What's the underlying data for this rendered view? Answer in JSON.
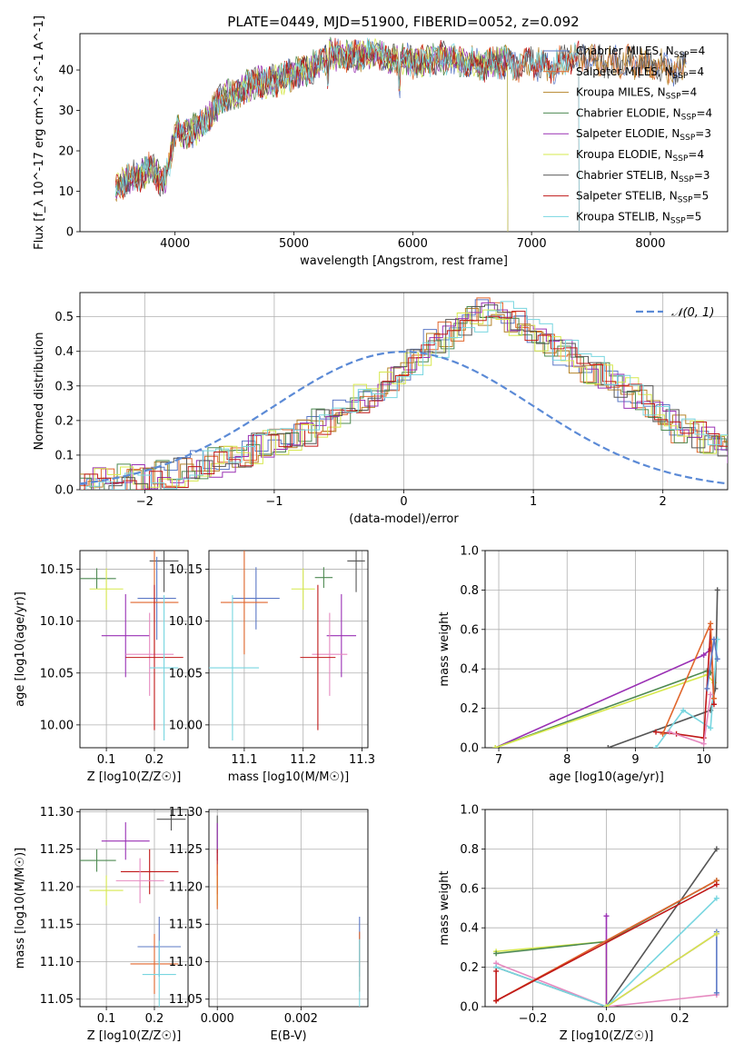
{
  "figure": {
    "title": "PLATE=0449, MJD=51900, FIBERID=0052, z=0.092"
  },
  "colors": {
    "chabrier_miles": "#5b78c6",
    "salpeter_miles": "#e0662c",
    "kroupa_miles": "#b5842a",
    "chabrier_elodie": "#4e8a52",
    "salpeter_elodie": "#9a30b4",
    "kroupa_elodie": "#d6e84c",
    "chabrier_stelib": "#555555",
    "salpeter_stelib": "#c01818",
    "kroupa_stelib": "#78d6e0",
    "pink": "#e68ac0",
    "normal": "#5b8ad6"
  },
  "chart_data": [
    {
      "type": "line",
      "name": "spectrum",
      "xlabel": "wavelength [Angstrom, rest frame]",
      "ylabel": "Flux [f_λ 10^-17 erg cm^-2 s^-1 A^-1]",
      "xlim": [
        3200,
        8650
      ],
      "ylim": [
        0,
        49
      ],
      "xticks": [
        4000,
        5000,
        6000,
        7000,
        8000
      ],
      "yticks": [
        0,
        10,
        20,
        30,
        40
      ],
      "legend_position": "top-right",
      "x": [
        3500,
        3600,
        3700,
        3800,
        3900,
        3950,
        4000,
        4100,
        4200,
        4300,
        4400,
        4500,
        4600,
        4700,
        4800,
        4900,
        5000,
        5100,
        5200,
        5300,
        5400,
        5500,
        5600,
        5700,
        5800,
        5900,
        6000,
        6100,
        6200,
        6300,
        6400,
        6500,
        6600,
        6700,
        6800,
        6900,
        7000,
        7100,
        7200,
        7300,
        7400,
        7500,
        7600,
        7700,
        7800,
        7900,
        8000,
        8100,
        8200,
        8300
      ],
      "y": [
        11,
        13,
        14,
        16,
        12,
        17,
        25,
        24,
        26,
        29,
        33,
        34,
        36,
        37,
        37,
        38,
        39,
        40,
        41,
        44,
        44,
        43,
        44,
        44,
        43,
        43,
        42,
        42,
        43,
        43,
        42,
        42,
        41,
        42,
        42,
        41,
        42,
        41,
        41,
        43,
        43,
        43,
        42,
        42,
        42,
        42,
        41,
        41,
        40,
        41
      ],
      "series": [
        {
          "name": "Chabrier MILES, N_SSP=4",
          "label_main": "Chabrier MILES, N",
          "label_sub": "SSP",
          "label_tail": "=4",
          "color_key": "chabrier_miles",
          "x_end": 8300
        },
        {
          "name": "Salpeter MILES, N_SSP=4",
          "label_main": "Salpeter MILES, N",
          "label_sub": "SSP",
          "label_tail": "=4",
          "color_key": "salpeter_miles",
          "x_end": 8300
        },
        {
          "name": "Kroupa MILES, N_SSP=4",
          "label_main": "Kroupa MILES, N",
          "label_sub": "SSP",
          "label_tail": "=4",
          "color_key": "kroupa_miles",
          "x_end": 8300
        },
        {
          "name": "Chabrier ELODIE, N_SSP=4",
          "label_main": "Chabrier ELODIE, N",
          "label_sub": "SSP",
          "label_tail": "=4",
          "color_key": "chabrier_elodie",
          "x_end": 6800
        },
        {
          "name": "Salpeter ELODIE, N_SSP=3",
          "label_main": "Salpeter ELODIE, N",
          "label_sub": "SSP",
          "label_tail": "=3",
          "color_key": "salpeter_elodie",
          "x_end": 6800
        },
        {
          "name": "Kroupa ELODIE, N_SSP=4",
          "label_main": "Kroupa ELODIE, N",
          "label_sub": "SSP",
          "label_tail": "=4",
          "color_key": "kroupa_elodie",
          "x_end": 6800
        },
        {
          "name": "Chabrier STELIB, N_SSP=3",
          "label_main": "Chabrier STELIB, N",
          "label_sub": "SSP",
          "label_tail": "=3",
          "color_key": "chabrier_stelib",
          "x_end": 8300
        },
        {
          "name": "Salpeter STELIB, N_SSP=5",
          "label_main": "Salpeter STELIB, N",
          "label_sub": "SSP",
          "label_tail": "=5",
          "color_key": "salpeter_stelib",
          "x_end": 7400
        },
        {
          "name": "Kroupa STELIB, N_SSP=5",
          "label_main": "Kroupa STELIB, N",
          "label_sub": "SSP",
          "label_tail": "=5",
          "color_key": "kroupa_stelib",
          "x_end": 7400
        }
      ]
    },
    {
      "type": "bar",
      "name": "residual histogram",
      "xlabel": "(data-model)/error",
      "ylabel": "Normed distribution",
      "xlim": [
        -2.5,
        2.5
      ],
      "ylim": [
        0,
        0.57
      ],
      "xticks": [
        -2,
        -1,
        0,
        1,
        2
      ],
      "yticks": [
        0.0,
        0.1,
        0.2,
        0.3,
        0.4,
        0.5
      ],
      "legend_position": "top-right",
      "bin_width": 0.1,
      "bin_start": -2.5,
      "values": [
        0.02,
        0.02,
        0.025,
        0.03,
        0.03,
        0.035,
        0.04,
        0.05,
        0.06,
        0.07,
        0.08,
        0.09,
        0.1,
        0.12,
        0.13,
        0.14,
        0.15,
        0.17,
        0.19,
        0.21,
        0.23,
        0.26,
        0.28,
        0.3,
        0.33,
        0.36,
        0.38,
        0.42,
        0.45,
        0.47,
        0.49,
        0.52,
        0.5,
        0.48,
        0.46,
        0.44,
        0.41,
        0.39,
        0.37,
        0.35,
        0.33,
        0.3,
        0.28,
        0.26,
        0.23,
        0.21,
        0.18,
        0.16,
        0.14,
        0.12,
        0.1
      ],
      "normal_label": "𝒩(0, 1)",
      "normal_curve": {
        "mu": 0,
        "sigma": 1
      }
    },
    {
      "type": "scatter",
      "name": "age vs Z",
      "xlabel": "Z [log10(Z/Z☉)]",
      "ylabel": "age  [log10(age/yr)]",
      "xlim": [
        0.045,
        0.27
      ],
      "ylim": [
        9.978,
        10.168
      ],
      "xticks": [
        0.1,
        0.2
      ],
      "yticks": [
        10.0,
        10.05,
        10.1,
        10.15
      ],
      "points": [
        {
          "x": 0.08,
          "y": 10.141,
          "xerr": 0.04,
          "yerr": 0.01,
          "color_key": "chabrier_elodie"
        },
        {
          "x": 0.1,
          "y": 10.131,
          "xerr": 0.035,
          "yerr": 0.02,
          "color_key": "kroupa_elodie"
        },
        {
          "x": 0.22,
          "y": 10.158,
          "xerr": 0.03,
          "yerr": 0.03,
          "color_key": "chabrier_stelib"
        },
        {
          "x": 0.205,
          "y": 10.122,
          "xerr": 0.04,
          "yerr": 0.04,
          "color_key": "chabrier_miles"
        },
        {
          "x": 0.2,
          "y": 10.118,
          "xerr": 0.05,
          "yerr": 0.05,
          "color_key": "salpeter_miles"
        },
        {
          "x": 0.14,
          "y": 10.086,
          "xerr": 0.05,
          "yerr": 0.04,
          "color_key": "salpeter_elodie"
        },
        {
          "x": 0.19,
          "y": 10.068,
          "xerr": 0.05,
          "yerr": 0.04,
          "color_key": "pink"
        },
        {
          "x": 0.2,
          "y": 10.065,
          "xerr": 0.06,
          "yerr": 0.07,
          "color_key": "salpeter_stelib"
        },
        {
          "x": 0.22,
          "y": 10.055,
          "xerr": 0.03,
          "yerr": 0.07,
          "color_key": "kroupa_stelib"
        }
      ]
    },
    {
      "type": "scatter",
      "name": "age vs mass",
      "xlabel": "mass [log10(M/M☉)]",
      "ylabel": "",
      "xlim": [
        11.04,
        11.31
      ],
      "ylim": [
        9.978,
        10.168
      ],
      "xticks": [
        11.1,
        11.2,
        11.3
      ],
      "yticks": [
        10.0,
        10.05,
        10.1,
        10.15
      ],
      "points": [
        {
          "x": 11.235,
          "y": 10.142,
          "xerr": 0.015,
          "yerr": 0.01,
          "color_key": "chabrier_elodie"
        },
        {
          "x": 11.2,
          "y": 10.131,
          "xerr": 0.02,
          "yerr": 0.02,
          "color_key": "kroupa_elodie"
        },
        {
          "x": 11.29,
          "y": 10.158,
          "xerr": 0.015,
          "yerr": 0.03,
          "color_key": "chabrier_stelib"
        },
        {
          "x": 11.12,
          "y": 10.122,
          "xerr": 0.04,
          "yerr": 0.03,
          "color_key": "chabrier_miles"
        },
        {
          "x": 11.1,
          "y": 10.118,
          "xerr": 0.04,
          "yerr": 0.05,
          "color_key": "salpeter_miles"
        },
        {
          "x": 11.265,
          "y": 10.086,
          "xerr": 0.025,
          "yerr": 0.04,
          "color_key": "salpeter_elodie"
        },
        {
          "x": 11.245,
          "y": 10.068,
          "xerr": 0.03,
          "yerr": 0.04,
          "color_key": "pink"
        },
        {
          "x": 11.225,
          "y": 10.065,
          "xerr": 0.03,
          "yerr": 0.07,
          "color_key": "salpeter_stelib"
        },
        {
          "x": 11.08,
          "y": 10.055,
          "xerr": 0.045,
          "yerr": 0.07,
          "color_key": "kroupa_stelib"
        }
      ]
    },
    {
      "type": "line",
      "name": "mass weight vs age",
      "xlabel": "age  [log10(age/yr)]",
      "ylabel": "mass weight",
      "xlim": [
        6.8,
        10.35
      ],
      "ylim": [
        0,
        1.0
      ],
      "xticks": [
        7,
        8,
        9,
        10
      ],
      "yticks": [
        0.0,
        0.2,
        0.4,
        0.6,
        0.8,
        1.0
      ],
      "series": [
        {
          "color_key": "salpeter_elodie",
          "x": [
            6.95,
            10.0,
            10.1
          ],
          "y": [
            0.0,
            0.47,
            0.5
          ]
        },
        {
          "color_key": "chabrier_elodie",
          "x": [
            6.95,
            10.05,
            10.1
          ],
          "y": [
            0.0,
            0.39,
            0.38
          ]
        },
        {
          "color_key": "kroupa_elodie",
          "x": [
            6.95,
            10.05,
            10.15
          ],
          "y": [
            0.0,
            0.37,
            0.33
          ]
        },
        {
          "color_key": "chabrier_stelib",
          "x": [
            8.6,
            10.1,
            10.17,
            10.2
          ],
          "y": [
            0.0,
            0.19,
            0.3,
            0.8
          ]
        },
        {
          "color_key": "kroupa_stelib",
          "x": [
            9.3,
            9.7,
            10.1,
            10.2
          ],
          "y": [
            0.0,
            0.19,
            0.1,
            0.55
          ]
        },
        {
          "color_key": "salpeter_stelib",
          "x": [
            9.3,
            9.6,
            10.0,
            10.1,
            10.15
          ],
          "y": [
            0.08,
            0.07,
            0.05,
            0.6,
            0.22
          ]
        },
        {
          "color_key": "salpeter_miles",
          "x": [
            9.4,
            10.1,
            10.15
          ],
          "y": [
            0.07,
            0.63,
            0.25
          ]
        },
        {
          "color_key": "pink",
          "x": [
            9.5,
            10.0,
            10.1
          ],
          "y": [
            0.08,
            0.02,
            0.27
          ]
        },
        {
          "color_key": "chabrier_miles",
          "x": [
            10.05,
            10.15,
            10.2
          ],
          "y": [
            0.3,
            0.55,
            0.45
          ]
        }
      ]
    },
    {
      "type": "scatter",
      "name": "mass vs Z",
      "xlabel": "Z [log10(Z/Z☉)]",
      "ylabel": "mass [log10(M/M☉)]",
      "xlim": [
        0.045,
        0.27
      ],
      "ylim": [
        11.04,
        11.303
      ],
      "xticks": [
        0.1,
        0.2
      ],
      "yticks": [
        11.05,
        11.1,
        11.15,
        11.2,
        11.25,
        11.3
      ],
      "points": [
        {
          "x": 0.08,
          "y": 11.235,
          "xerr": 0.04,
          "yerr": 0.015,
          "color_key": "chabrier_elodie"
        },
        {
          "x": 0.1,
          "y": 11.195,
          "xerr": 0.035,
          "yerr": 0.02,
          "color_key": "kroupa_elodie"
        },
        {
          "x": 0.235,
          "y": 11.29,
          "xerr": 0.03,
          "yerr": 0.015,
          "color_key": "chabrier_stelib"
        },
        {
          "x": 0.14,
          "y": 11.261,
          "xerr": 0.05,
          "yerr": 0.025,
          "color_key": "salpeter_elodie"
        },
        {
          "x": 0.19,
          "y": 11.22,
          "xerr": 0.06,
          "yerr": 0.03,
          "color_key": "salpeter_stelib"
        },
        {
          "x": 0.17,
          "y": 11.208,
          "xerr": 0.05,
          "yerr": 0.03,
          "color_key": "pink"
        },
        {
          "x": 0.21,
          "y": 11.12,
          "xerr": 0.045,
          "yerr": 0.04,
          "color_key": "chabrier_miles"
        },
        {
          "x": 0.2,
          "y": 11.097,
          "xerr": 0.05,
          "yerr": 0.04,
          "color_key": "salpeter_miles"
        },
        {
          "x": 0.21,
          "y": 11.083,
          "xerr": 0.035,
          "yerr": 0.045,
          "color_key": "kroupa_stelib"
        }
      ]
    },
    {
      "type": "scatter",
      "name": "mass vs E(B-V)",
      "xlabel": "E(B-V)",
      "ylabel": "",
      "xlim": [
        -0.0002,
        0.0036
      ],
      "ylim": [
        11.04,
        11.303
      ],
      "xticks": [
        0.0,
        0.002
      ],
      "yticks": [
        11.05,
        11.1,
        11.15,
        11.2,
        11.25,
        11.3
      ],
      "points": [
        {
          "x": 0.0,
          "y": 11.27,
          "xerr": 0,
          "yerr": 0.025,
          "color_key": "chabrier_stelib"
        },
        {
          "x": 0.0,
          "y": 11.26,
          "xerr": 0,
          "yerr": 0.025,
          "color_key": "salpeter_elodie"
        },
        {
          "x": 0.0,
          "y": 11.22,
          "xerr": 0,
          "yerr": 0.03,
          "color_key": "salpeter_stelib"
        },
        {
          "x": 0.0,
          "y": 11.195,
          "xerr": 0,
          "yerr": 0.02,
          "color_key": "kroupa_elodie"
        },
        {
          "x": 0.0,
          "y": 11.2,
          "xerr": 0,
          "yerr": 0.03,
          "color_key": "salpeter_miles"
        },
        {
          "x": 0.0034,
          "y": 11.12,
          "xerr": 0,
          "yerr": 0.04,
          "color_key": "chabrier_miles"
        },
        {
          "x": 0.0034,
          "y": 11.1,
          "xerr": 0,
          "yerr": 0.04,
          "color_key": "salpeter_miles"
        },
        {
          "x": 0.0034,
          "y": 11.085,
          "xerr": 0,
          "yerr": 0.045,
          "color_key": "kroupa_stelib"
        }
      ]
    },
    {
      "type": "line",
      "name": "mass weight vs Z",
      "xlabel": "Z [log10(Z/Z☉)]",
      "ylabel": "mass weight",
      "xlim": [
        -0.33,
        0.33
      ],
      "ylim": [
        0,
        1.0
      ],
      "xticks": [
        -0.2,
        0.0,
        0.2
      ],
      "yticks": [
        0.0,
        0.2,
        0.4,
        0.6,
        0.8,
        1.0
      ],
      "series": [
        {
          "color_key": "kroupa_elodie",
          "x": [
            -0.3,
            0.0,
            0.0
          ],
          "y": [
            0.28,
            0.33,
            0.0
          ]
        },
        {
          "color_key": "chabrier_elodie",
          "x": [
            -0.3,
            0.0,
            0.3
          ],
          "y": [
            0.27,
            0.33,
            0.64
          ]
        },
        {
          "color_key": "salpeter_elodie",
          "x": [
            0.0,
            0.0,
            0.3
          ],
          "y": [
            0.46,
            0.0,
            0.37
          ]
        },
        {
          "color_key": "chabrier_stelib",
          "x": [
            -0.3,
            0.0,
            0.3
          ],
          "y": [
            0.2,
            0.0,
            0.8
          ]
        },
        {
          "color_key": "pink",
          "x": [
            -0.3,
            0.0,
            0.3
          ],
          "y": [
            0.22,
            0.0,
            0.06
          ]
        },
        {
          "color_key": "kroupa_stelib",
          "x": [
            -0.3,
            0.0,
            0.3
          ],
          "y": [
            0.2,
            0.0,
            0.55
          ]
        },
        {
          "color_key": "salpeter_miles",
          "x": [
            -0.3,
            0.3
          ],
          "y": [
            0.03,
            0.64
          ]
        },
        {
          "color_key": "salpeter_stelib",
          "x": [
            -0.3,
            -0.3,
            0.3
          ],
          "y": [
            0.18,
            0.03,
            0.62
          ]
        },
        {
          "color_key": "chabrier_miles",
          "x": [
            0.3,
            0.3
          ],
          "y": [
            0.38,
            0.07
          ]
        },
        {
          "color_key": "kroupa_elodie",
          "x": [
            0.0,
            0.3
          ],
          "y": [
            0.0,
            0.37
          ]
        }
      ]
    }
  ]
}
